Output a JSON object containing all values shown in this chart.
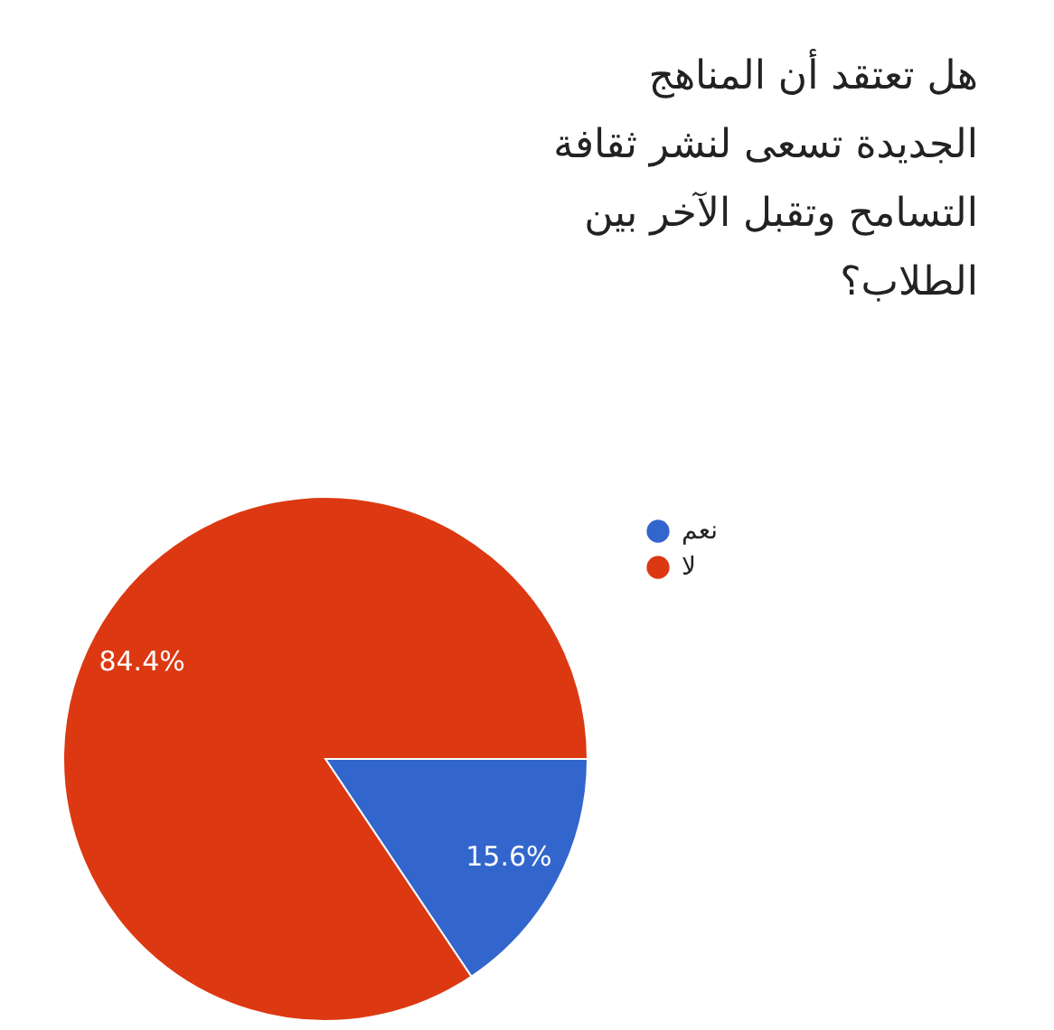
{
  "chart_data": {
    "type": "pie",
    "title": "هل تعتقد أن المناهج الجديدة تسعى لنشر ثقافة التسامح وتقبل الآخر بين الطلاب؟",
    "categories": [
      "نعم",
      "لا"
    ],
    "values": [
      15.6,
      84.4
    ],
    "colors": [
      "#3366cc",
      "#dc3912"
    ],
    "value_labels": [
      "15.6%",
      "84.4%"
    ],
    "legend": "top right"
  }
}
